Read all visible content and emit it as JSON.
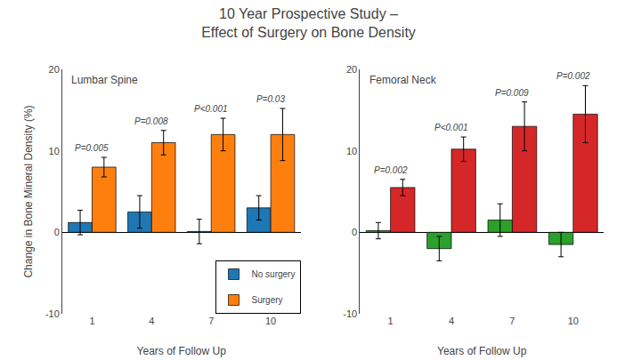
{
  "title": "10 Year Prospective Study –\nEffect of Surgery on Bone Density",
  "chart_data": [
    {
      "type": "bar",
      "title": "Lumbar Spine",
      "xlabel": "Years of Follow Up",
      "ylabel": "Change in Bone Mineral Density (%)",
      "categories": [
        "1",
        "4",
        "7",
        "10"
      ],
      "series": [
        {
          "name": "No surgery",
          "values": [
            1.2,
            2.5,
            0.1,
            3.0
          ],
          "errors": [
            1.5,
            2.0,
            1.5,
            1.5
          ]
        },
        {
          "name": "Surgery",
          "values": [
            8.0,
            11.0,
            12.0,
            12.0
          ],
          "errors": [
            1.2,
            1.5,
            2.0,
            3.2
          ]
        }
      ],
      "annotations": [
        {
          "category": "1",
          "text": "P=0.005"
        },
        {
          "category": "4",
          "text": "P=0.008"
        },
        {
          "category": "7",
          "text": "P<0.001"
        },
        {
          "category": "10",
          "text": "P=0.03"
        }
      ],
      "ylim": [
        -10,
        20
      ],
      "yticks": [
        -10,
        0,
        10,
        20
      ],
      "grid": false,
      "legend": "lower right"
    },
    {
      "type": "bar",
      "title": "Femoral Neck",
      "xlabel": "Years of Follow Up",
      "categories": [
        "1",
        "4",
        "7",
        "10"
      ],
      "series": [
        {
          "name": "No surgery",
          "values": [
            0.2,
            -2.0,
            1.5,
            -1.5
          ],
          "errors": [
            1.0,
            1.5,
            2.0,
            1.5
          ]
        },
        {
          "name": "Surgery",
          "values": [
            5.5,
            10.2,
            13.0,
            14.5
          ],
          "errors": [
            1.0,
            1.5,
            3.0,
            3.5
          ]
        }
      ],
      "annotations": [
        {
          "category": "1",
          "text": "P=0.002"
        },
        {
          "category": "4",
          "text": "P<0.001"
        },
        {
          "category": "7",
          "text": "P=0.009"
        },
        {
          "category": "10",
          "text": "P=0.002"
        }
      ],
      "ylim": [
        -10,
        20
      ],
      "yticks": [
        -10,
        0,
        10,
        20
      ],
      "grid": false
    }
  ]
}
